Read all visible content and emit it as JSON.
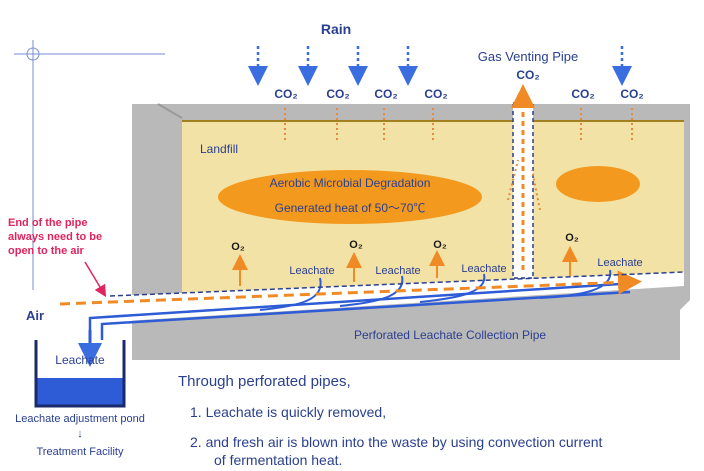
{
  "rain_label": "Rain",
  "gas_vent_label": "Gas Venting Pipe",
  "co2_label": "CO₂",
  "o2_label": "O₂",
  "landfill_label": "Landfill",
  "degradation_line1": "Aerobic Microbial Degradation",
  "degradation_line2": "Generated heat  of  50～70℃",
  "pipe_end_note": [
    "End of the pipe",
    "always need to be",
    "open to the air"
  ],
  "air_label": "Air",
  "leachate_label": "Leachate",
  "collection_pipe_label": "Perforated Leachate Collection Pipe",
  "pond_label": "Leachate",
  "pond_caption": "Leachate adjustment pond",
  "arrow_down": "↓",
  "treatment_label": "Treatment Facility",
  "explanation": {
    "intro": "Through perforated pipes,",
    "point1": "1.  Leachate is quickly removed,",
    "point2a": "2.  and fresh air is blown into the waste by using convection current",
    "point2b": "of fermentation heat."
  },
  "colors": {
    "landfill_fill": "#f3e2a6",
    "ellipse_fill": "#f39a1e",
    "pipe_blue": "#2e5bd6",
    "air_arrow": "#f08a24",
    "note_red": "#e0245e",
    "text_navy": "#2a3f8f",
    "ground_gray": "#b9b9b9"
  }
}
